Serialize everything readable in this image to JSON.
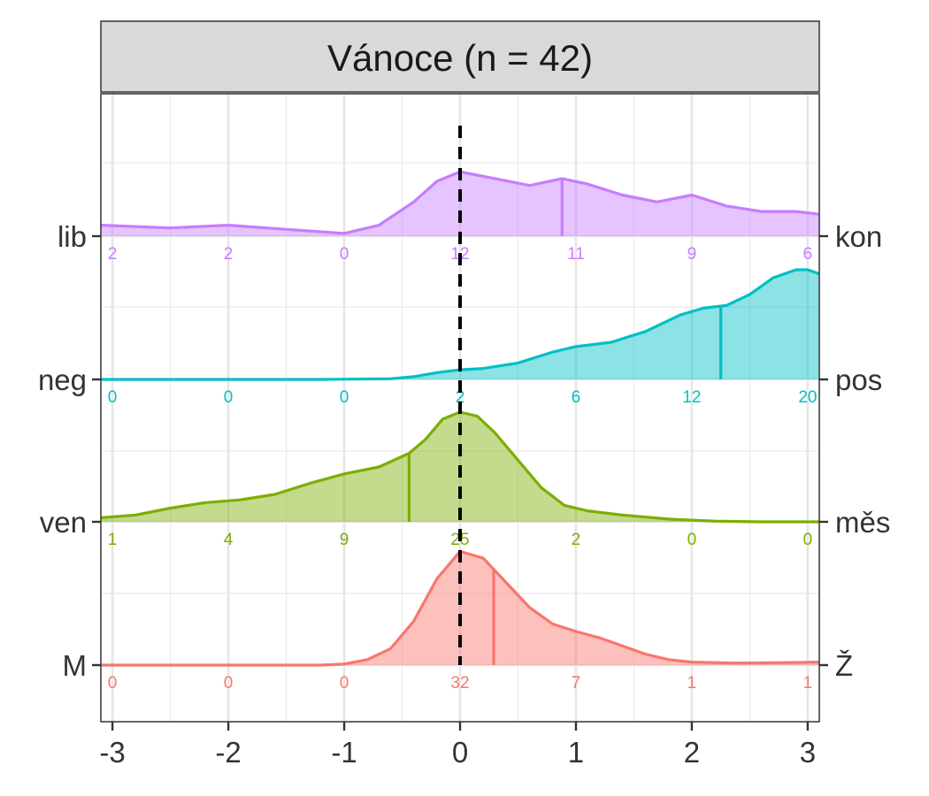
{
  "chart_data": {
    "type": "ridgeline",
    "title": "Vánoce (n = 42)",
    "xlabel": "",
    "ylabel": "",
    "xlim": [
      -3.1,
      3.1
    ],
    "x_ticks": [
      -3,
      -2,
      -1,
      0,
      1,
      2,
      3
    ],
    "x_tick_labels": [
      "-3",
      "-2",
      "-1",
      "0",
      "1",
      "2",
      "3"
    ],
    "reference_line": {
      "x": 0,
      "style": "dashed",
      "color": "#000000"
    },
    "grid": true,
    "scales": [
      {
        "left_label": "M",
        "right_label": "Ž",
        "color": "#F8766D",
        "mean": 0.29,
        "counts": [
          "0",
          "0",
          "0",
          "32",
          "7",
          "1",
          "1"
        ],
        "density": [
          [
            -3.1,
            0
          ],
          [
            -2.0,
            0
          ],
          [
            -1.2,
            0
          ],
          [
            -1.0,
            0.008
          ],
          [
            -0.8,
            0.04
          ],
          [
            -0.6,
            0.12
          ],
          [
            -0.4,
            0.32
          ],
          [
            -0.2,
            0.63
          ],
          [
            0.0,
            0.83
          ],
          [
            0.2,
            0.78
          ],
          [
            0.4,
            0.6
          ],
          [
            0.6,
            0.42
          ],
          [
            0.8,
            0.3
          ],
          [
            1.0,
            0.245
          ],
          [
            1.2,
            0.2
          ],
          [
            1.4,
            0.14
          ],
          [
            1.6,
            0.08
          ],
          [
            1.8,
            0.04
          ],
          [
            2.0,
            0.022
          ],
          [
            2.4,
            0.015
          ],
          [
            2.8,
            0.018
          ],
          [
            3.1,
            0.022
          ]
        ]
      },
      {
        "left_label": "ven",
        "right_label": "měs",
        "color": "#7CAE00",
        "mean": -0.44,
        "counts": [
          "1",
          "4",
          "9",
          "25",
          "2",
          "0",
          "0"
        ],
        "density": [
          [
            -3.1,
            0.03
          ],
          [
            -2.8,
            0.05
          ],
          [
            -2.5,
            0.1
          ],
          [
            -2.2,
            0.14
          ],
          [
            -1.9,
            0.16
          ],
          [
            -1.6,
            0.2
          ],
          [
            -1.3,
            0.28
          ],
          [
            -1.0,
            0.35
          ],
          [
            -0.7,
            0.4
          ],
          [
            -0.44,
            0.5
          ],
          [
            -0.3,
            0.6
          ],
          [
            -0.15,
            0.75
          ],
          [
            0.0,
            0.8
          ],
          [
            0.15,
            0.77
          ],
          [
            0.3,
            0.65
          ],
          [
            0.5,
            0.45
          ],
          [
            0.7,
            0.25
          ],
          [
            0.9,
            0.12
          ],
          [
            1.1,
            0.08
          ],
          [
            1.4,
            0.05
          ],
          [
            1.8,
            0.02
          ],
          [
            2.2,
            0.005
          ],
          [
            2.6,
            0
          ],
          [
            3.1,
            0
          ]
        ]
      },
      {
        "left_label": "neg",
        "right_label": "pos",
        "color": "#00BFC4",
        "mean": 2.25,
        "counts": [
          "0",
          "0",
          "0",
          "2",
          "6",
          "12",
          "20"
        ],
        "density": [
          [
            -3.1,
            0
          ],
          [
            -2.0,
            0
          ],
          [
            -1.2,
            0
          ],
          [
            -0.6,
            0.005
          ],
          [
            -0.4,
            0.02
          ],
          [
            -0.2,
            0.05
          ],
          [
            0.0,
            0.07
          ],
          [
            0.2,
            0.08
          ],
          [
            0.5,
            0.12
          ],
          [
            0.8,
            0.2
          ],
          [
            1.0,
            0.24
          ],
          [
            1.3,
            0.27
          ],
          [
            1.6,
            0.35
          ],
          [
            1.9,
            0.47
          ],
          [
            2.1,
            0.52
          ],
          [
            2.3,
            0.54
          ],
          [
            2.5,
            0.62
          ],
          [
            2.7,
            0.74
          ],
          [
            2.9,
            0.8
          ],
          [
            3.0,
            0.8
          ],
          [
            3.1,
            0.77
          ]
        ]
      },
      {
        "left_label": "lib",
        "right_label": "kon",
        "color": "#C77CFF",
        "mean": 0.88,
        "counts": [
          "2",
          "2",
          "0",
          "12",
          "11",
          "9",
          "6"
        ],
        "density": [
          [
            -3.1,
            0.08
          ],
          [
            -2.5,
            0.06
          ],
          [
            -2.0,
            0.08
          ],
          [
            -1.5,
            0.05
          ],
          [
            -1.0,
            0.02
          ],
          [
            -0.7,
            0.08
          ],
          [
            -0.4,
            0.25
          ],
          [
            -0.2,
            0.4
          ],
          [
            0.0,
            0.47
          ],
          [
            0.3,
            0.42
          ],
          [
            0.6,
            0.37
          ],
          [
            0.88,
            0.42
          ],
          [
            1.1,
            0.38
          ],
          [
            1.4,
            0.3
          ],
          [
            1.7,
            0.25
          ],
          [
            2.0,
            0.3
          ],
          [
            2.3,
            0.22
          ],
          [
            2.6,
            0.18
          ],
          [
            2.9,
            0.18
          ],
          [
            3.1,
            0.16
          ]
        ]
      }
    ]
  }
}
